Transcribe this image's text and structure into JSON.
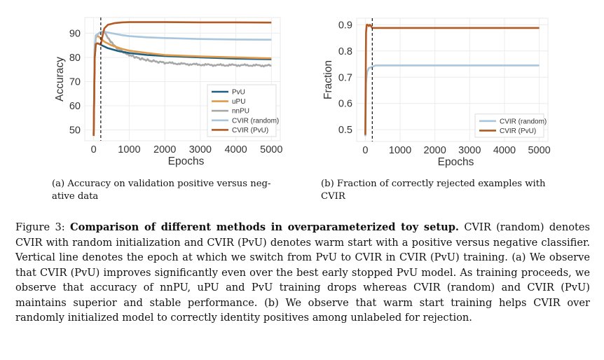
{
  "chart_data": [
    {
      "type": "line",
      "id": "a",
      "title": "",
      "xlabel": "Epochs",
      "ylabel": "Accuracy",
      "xlim": [
        -250,
        5250
      ],
      "ylim": [
        45.5,
        96.5
      ],
      "xticks": [
        0,
        1000,
        2000,
        3000,
        4000,
        5000
      ],
      "yticks": [
        50,
        60,
        70,
        80,
        90
      ],
      "grid": true,
      "legend_position": "bottom-right",
      "vline": {
        "x": 200,
        "style": "dashed",
        "meaning": "switch from PvU to CVIR"
      },
      "series": [
        {
          "name": "PvU",
          "color": "#1f5f80",
          "x": [
            0,
            30,
            60,
            100,
            150,
            200,
            400,
            700,
            1000,
            1500,
            2000,
            3000,
            4000,
            5000
          ],
          "y": [
            48,
            80,
            85.5,
            85.8,
            85.6,
            85.2,
            83.8,
            82.6,
            81.8,
            81,
            80.6,
            80,
            79.5,
            79.2
          ]
        },
        {
          "name": "uPU",
          "color": "#e09a4a",
          "x": [
            0,
            30,
            60,
            100,
            150,
            200,
            300,
            500,
            800,
            1000,
            1500,
            2000,
            3000,
            4000,
            5000
          ],
          "y": [
            48,
            82,
            88,
            89,
            88.5,
            87.8,
            86.5,
            85,
            83.5,
            82.8,
            81.8,
            81,
            80.4,
            80,
            79.6
          ]
        },
        {
          "name": "nnPU",
          "color": "#a8a8a8",
          "x": [
            0,
            30,
            60,
            100,
            200,
            300,
            400,
            600,
            800,
            1000,
            1300,
            1600,
            2000,
            2500,
            3000,
            3500,
            4000,
            4500,
            5000
          ],
          "y": [
            48,
            84,
            89,
            89.5,
            90.5,
            90.8,
            88,
            84.5,
            82.5,
            81,
            79.5,
            78.6,
            77.8,
            77.3,
            77,
            76.8,
            76.8,
            76.7,
            76.6
          ]
        },
        {
          "name": "CVIR (random)",
          "color": "#a9c6dc",
          "x": [
            0,
            30,
            60,
            100,
            200,
            300,
            500,
            800,
            1000,
            1500,
            2000,
            3000,
            4000,
            5000
          ],
          "y": [
            48,
            85,
            88.5,
            89.5,
            90.2,
            90.6,
            90,
            89.2,
            88.8,
            88.3,
            88,
            87.6,
            87.4,
            87.3
          ]
        },
        {
          "name": "CVIR (PvU)",
          "color": "#b35a24",
          "x": [
            0,
            30,
            60,
            100,
            150,
            200,
            250,
            300,
            400,
            600,
            800,
            1000,
            2000,
            3000,
            4000,
            5000
          ],
          "y": [
            47.5,
            80,
            85.5,
            85.8,
            85.6,
            85.3,
            89,
            92,
            93.5,
            94.2,
            94.5,
            94.6,
            94.6,
            94.5,
            94.5,
            94.4
          ]
        }
      ]
    },
    {
      "type": "line",
      "id": "b",
      "title": "",
      "xlabel": "Epochs",
      "ylabel": "Fraction",
      "xlim": [
        -250,
        5250
      ],
      "ylim": [
        0.455,
        0.925
      ],
      "xticks": [
        0,
        1000,
        2000,
        3000,
        4000,
        5000
      ],
      "yticks": [
        0.5,
        0.6,
        0.7,
        0.8,
        0.9
      ],
      "grid": true,
      "legend_position": "bottom-right",
      "vline": {
        "x": 200,
        "style": "dashed",
        "meaning": "switch from PvU to CVIR"
      },
      "series": [
        {
          "name": "CVIR (random)",
          "color": "#a9c6dc",
          "x": [
            0,
            20,
            50,
            100,
            150,
            200,
            300,
            1000,
            2000,
            3000,
            4000,
            5000
          ],
          "y": [
            0.475,
            0.68,
            0.72,
            0.735,
            0.737,
            0.74,
            0.745,
            0.745,
            0.745,
            0.745,
            0.745,
            0.745
          ]
        },
        {
          "name": "CVIR (PvU)",
          "color": "#b35a24",
          "x": [
            0,
            20,
            40,
            70,
            100,
            130,
            160,
            200,
            300,
            1000,
            2000,
            3000,
            4000,
            5000
          ],
          "y": [
            0.48,
            0.87,
            0.9,
            0.9,
            0.895,
            0.9,
            0.895,
            0.888,
            0.888,
            0.888,
            0.888,
            0.888,
            0.888,
            0.888
          ]
        }
      ]
    }
  ],
  "subcaptions": {
    "a": "(a) Accuracy on validation positive versus negative data",
    "a_line1": "(a) Accuracy on validation positive versus neg-",
    "a_line2": "ative data",
    "b_line1": "(b) Fraction of correctly rejected examples with",
    "b_line2": "CVIR"
  },
  "caption": {
    "label": "Figure 3:",
    "bold_title": "Comparison of different methods in overparameterized toy setup.",
    "body": "CVIR (random) denotes CVIR with random initialization and CVIR (PvU) denotes warm start with a positive versus negative classifier. Vertical line denotes the epoch at which we switch from PvU to CVIR in CVIR (PvU) training. (a) We observe that CVIR (PvU) improves significantly even over the best early stopped PvU model. As training proceeds, we observe that accuracy of nnPU, uPU and PvU training drops whereas CVIR (random) and CVIR (PvU) maintains superior and stable performance. (b) We observe that warm start training helps CVIR over randomly initialized model to correctly identity positives among unlabeled for rejection."
  }
}
